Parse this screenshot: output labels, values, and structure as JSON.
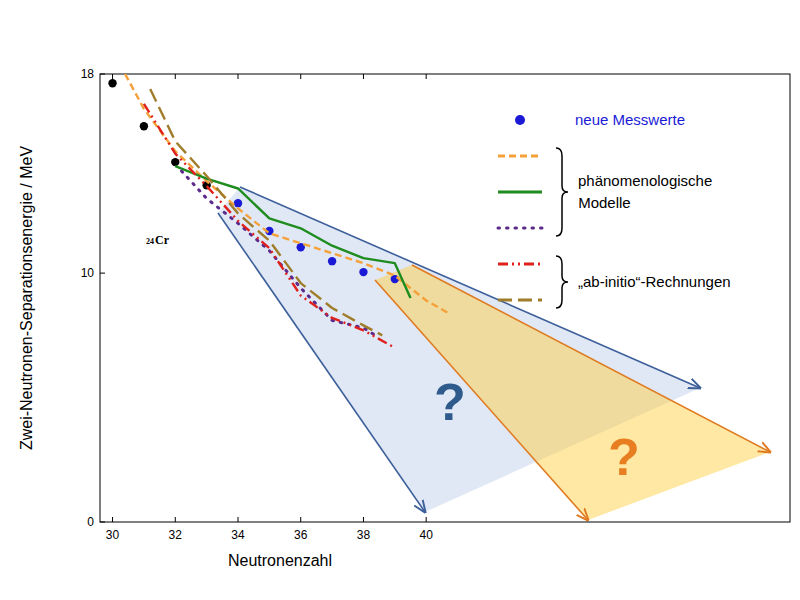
{
  "chart_data": {
    "type": "line",
    "xlabel": "Neutronenzahl",
    "ylabel": "Zwei-Neutronen-Separationsenergie / MeV",
    "xlim": [
      29.6,
      51.6
    ],
    "ylim": [
      0,
      18
    ],
    "xticks": [
      30,
      32,
      34,
      36,
      38,
      40
    ],
    "yticks": [
      0,
      10,
      18
    ],
    "grid": false,
    "series": [
      {
        "color": "#000000",
        "type": "scatter",
        "marker": "circle",
        "x": [
          30,
          31,
          32,
          33
        ],
        "values": [
          17.63,
          15.9,
          14.46,
          13.53
        ]
      },
      {
        "name": "neue Messwerte",
        "color": "#1a1ad6",
        "type": "scatter",
        "marker": "circle",
        "x": [
          34,
          35,
          36,
          37,
          38,
          39
        ],
        "values": [
          12.81,
          11.69,
          11.04,
          10.48,
          10.04,
          9.76
        ]
      },
      {
        "name": "phänomenologische Modelle",
        "color": "#f4a13a",
        "type": "line",
        "line_style": "dashed",
        "x": [
          30.4,
          31,
          32,
          33,
          34,
          35,
          36,
          37,
          38,
          39,
          40,
          40.7
        ],
        "values": [
          18,
          16.6,
          14.9,
          13.7,
          12.6,
          11.6,
          11.2,
          10.8,
          10.4,
          9.9,
          8.9,
          8.4
        ]
      },
      {
        "name": "phänomenologische Modelle",
        "color": "#1e8c1e",
        "type": "line",
        "line_style": "solid",
        "x": [
          32,
          33,
          34,
          35,
          36,
          37,
          38,
          39,
          39.5
        ],
        "values": [
          14.3,
          13.8,
          13.4,
          12.2,
          11.8,
          11.1,
          10.6,
          10.4,
          9.0
        ]
      },
      {
        "name": "phänomenologische Modelle",
        "color": "#5b2a8c",
        "type": "line",
        "line_style": "dotted",
        "x": [
          32.2,
          33,
          34,
          35,
          36,
          37,
          38,
          38.5
        ],
        "values": [
          14.1,
          13.0,
          12.0,
          10.9,
          9.4,
          8.1,
          7.8,
          7.4
        ]
      },
      {
        "name": "„ab-initio“-Rechnungen",
        "color": "#e0201b",
        "type": "line",
        "line_style": "dashdotdot",
        "x": [
          31,
          32,
          33,
          34,
          35,
          36,
          37,
          38,
          39
        ],
        "values": [
          16.8,
          14.8,
          13.5,
          12.1,
          11.0,
          9.1,
          8.2,
          7.7,
          7.0
        ]
      },
      {
        "name": "„ab-initio“-Rechnungen",
        "color": "#a07d2a",
        "type": "line",
        "line_style": "long_dash",
        "x": [
          31.2,
          32,
          33,
          34,
          35,
          36,
          37,
          38,
          38.6
        ],
        "values": [
          17.4,
          15.3,
          13.9,
          12.4,
          11.3,
          9.6,
          8.6,
          7.9,
          7.5
        ]
      }
    ],
    "annotations": [
      {
        "text": "24"
      },
      {
        "text": "Cr"
      },
      {
        "text": "?",
        "color": "#2e5a8c"
      },
      {
        "text": "?",
        "color": "#e87e22"
      }
    ]
  }
}
